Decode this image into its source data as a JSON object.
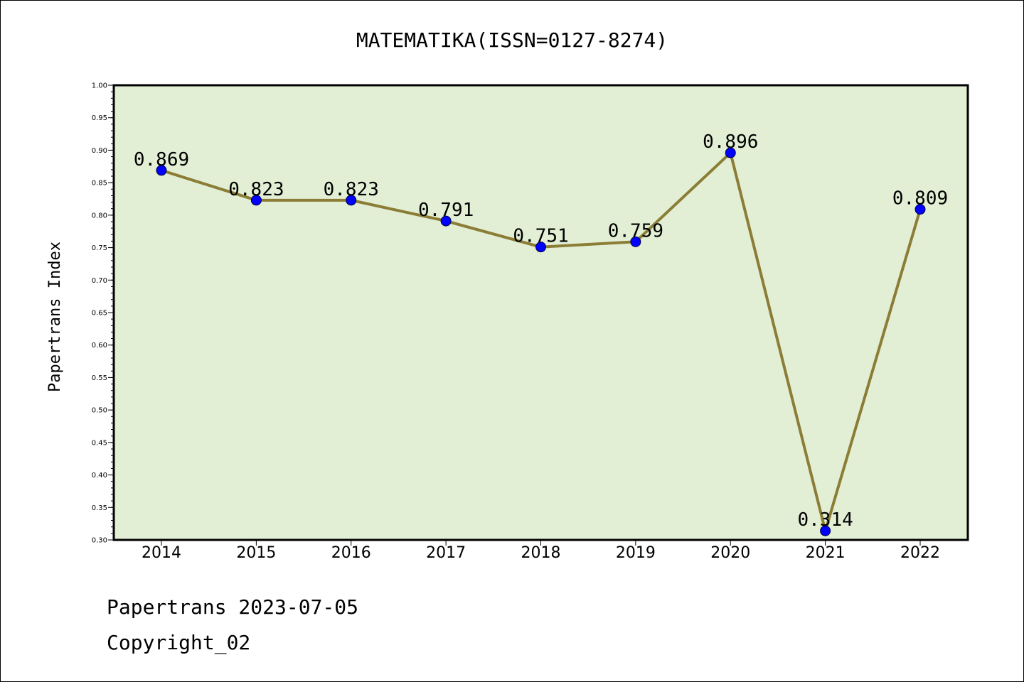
{
  "chart_data": {
    "type": "line",
    "title": "MATEMATIKA(ISSN=0127-8274)",
    "ylabel": "Papertrans Index",
    "xlabel": "",
    "categories": [
      "2014",
      "2015",
      "2016",
      "2017",
      "2018",
      "2019",
      "2020",
      "2021",
      "2022"
    ],
    "series": [
      {
        "values": [
          0.869,
          0.823,
          0.823,
          0.791,
          0.751,
          0.759,
          0.896,
          0.314,
          0.809
        ],
        "labels": [
          "0.869",
          "0.823",
          "0.823",
          "0.791",
          "0.751",
          "0.759",
          "0.896",
          "0.314",
          "0.809"
        ]
      }
    ],
    "ylim": [
      0.3,
      1.0
    ],
    "yticks": [
      "0.30",
      "0.35",
      "0.40",
      "0.45",
      "0.50",
      "0.55",
      "0.60",
      "0.65",
      "0.70",
      "0.75",
      "0.80",
      "0.85",
      "0.90",
      "0.95",
      "1.00"
    ],
    "grid": false,
    "colors": {
      "plot_background": "#e2efd5",
      "line": "#8b7d35",
      "marker": "#0000ff"
    }
  },
  "footer": {
    "line1": "Papertrans 2023-07-05",
    "line2": "Copyright_02"
  }
}
